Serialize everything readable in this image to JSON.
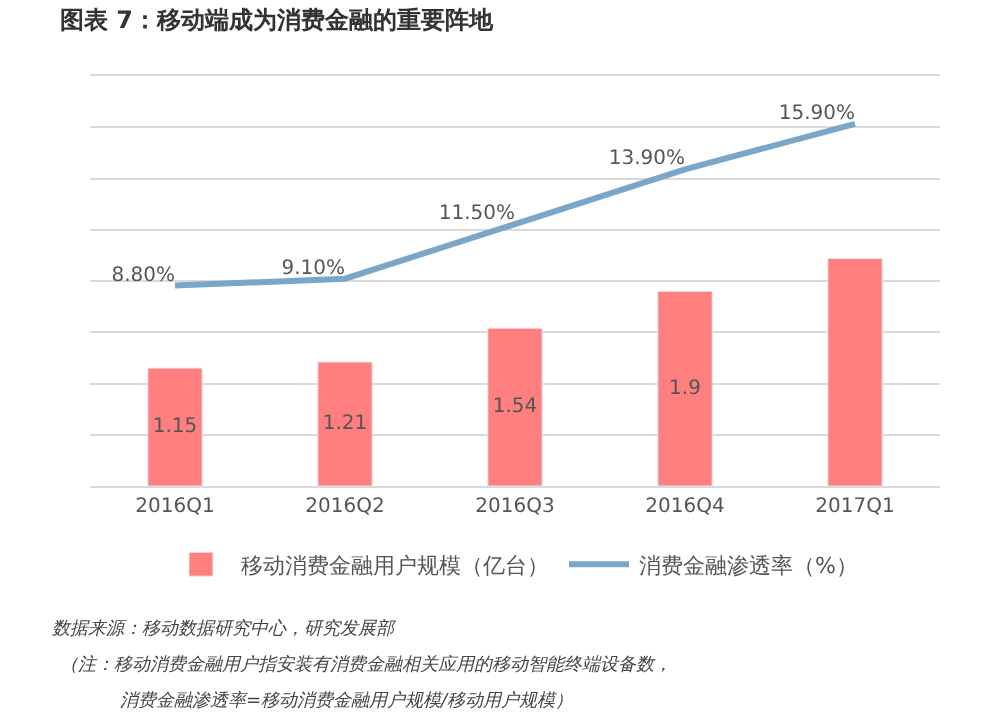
{
  "chart_data": {
    "type": "bar",
    "title": "图表 7：移动端成为消费金融的重要阵地",
    "categories": [
      "2016Q1",
      "2016Q2",
      "2016Q3",
      "2016Q4",
      "2017Q1"
    ],
    "series": [
      {
        "name": "移动消费金融用户规模（亿台）",
        "color": "#ff7f7f",
        "values": [
          1.15,
          1.21,
          1.54,
          1.9,
          2.22
        ],
        "value_labels": [
          "1.15",
          "1.21",
          "1.54",
          "1.9",
          null
        ]
      },
      {
        "name": "消费金融渗透率（%）",
        "type": "line",
        "axis": "y2",
        "color": "#7aa6c8",
        "values": [
          8.8,
          9.1,
          11.5,
          13.9,
          15.9
        ],
        "value_labels": [
          "8.80%",
          "9.10%",
          "11.50%",
          "13.90%",
          "15.90%"
        ]
      }
    ],
    "ylim": [
      0,
      4
    ],
    "yticks": [
      {
        "value": 0,
        "label": null
      },
      {
        "value": 0.5,
        "label": null
      },
      {
        "value": 1,
        "label": null
      },
      {
        "value": 1.5,
        "label": null
      },
      {
        "value": 2,
        "label": null
      },
      {
        "value": 2.5,
        "label": null
      },
      {
        "value": 3,
        "label": null
      },
      {
        "value": 3.5,
        "label": null
      },
      {
        "value": 4,
        "label": null
      }
    ],
    "y2lim": [
      0,
      18
    ],
    "grid": "y",
    "legend": "bottom",
    "tick_labels": "x",
    "marker": "none",
    "line_style": "solid",
    "annotations": [
      "数据来源：移动数据研究中心，研究发展部",
      "（注：移动消费金融用户指安装有消费金融相关应用的移动智能终端设备数，",
      "消费金融渗透率=移动消费金融用户规模/移动用户规模）"
    ]
  }
}
